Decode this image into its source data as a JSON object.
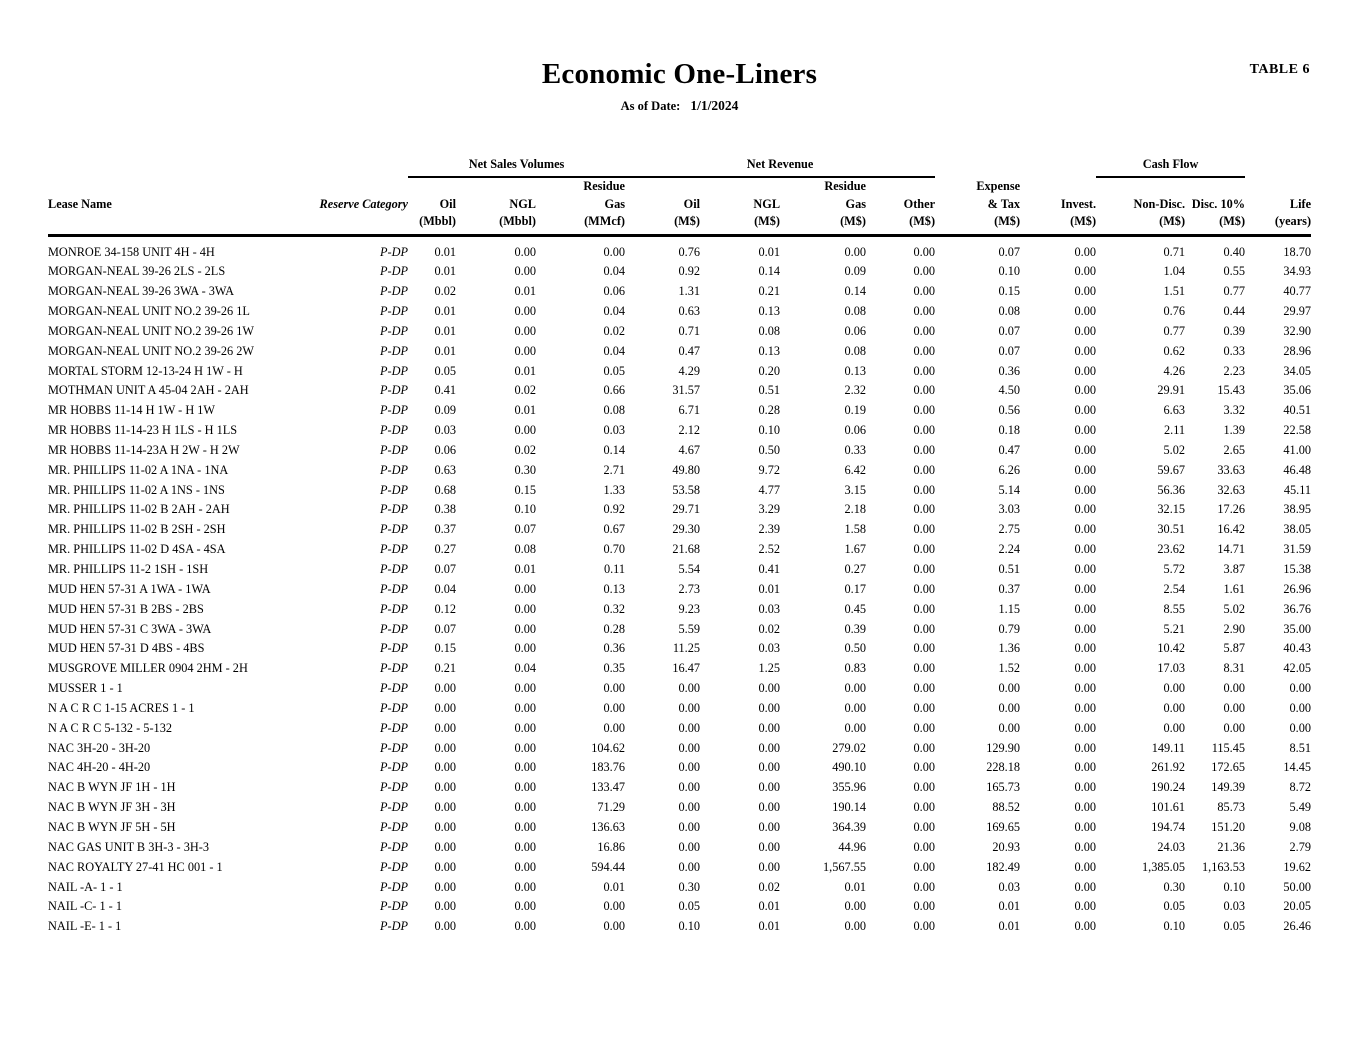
{
  "page": {
    "table_label": "TABLE 6",
    "title": "Economic One-Liners",
    "as_of_label": "As of Date:",
    "as_of_value": "1/1/2024"
  },
  "table": {
    "groups": {
      "net_sales": "Net Sales Volumes",
      "net_revenue": "Net Revenue",
      "cash_flow": "Cash Flow"
    },
    "headers": {
      "lease_name": "Lease Name",
      "reserve_category": "Reserve Category",
      "oil_vol": [
        "Oil",
        "(Mbbl)"
      ],
      "ngl_vol": [
        "NGL",
        "(Mbbl)"
      ],
      "residue_gas_vol": [
        "Residue",
        "Gas",
        "(MMcf)"
      ],
      "oil_rev": [
        "Oil",
        "(M$)"
      ],
      "ngl_rev": [
        "NGL",
        "(M$)"
      ],
      "residue_gas_rev": [
        "Residue",
        "Gas",
        "(M$)"
      ],
      "other_rev": [
        "Other",
        "(M$)"
      ],
      "expense_tax": [
        "Expense",
        "& Tax",
        "(M$)"
      ],
      "invest": [
        "Invest.",
        "(M$)"
      ],
      "non_disc": [
        "Non-Disc.",
        "(M$)"
      ],
      "disc_10": [
        "Disc. 10%",
        "(M$)"
      ],
      "life": [
        "Life",
        "(years)"
      ]
    },
    "rows": [
      {
        "lease": "MONROE 34-158 UNIT 4H - 4H",
        "category": "P-DP",
        "values": [
          "0.01",
          "0.00",
          "0.00",
          "0.76",
          "0.01",
          "0.00",
          "0.00",
          "0.07",
          "0.00",
          "0.71",
          "0.40",
          "18.70"
        ]
      },
      {
        "lease": "MORGAN-NEAL 39-26 2LS - 2LS",
        "category": "P-DP",
        "values": [
          "0.01",
          "0.00",
          "0.04",
          "0.92",
          "0.14",
          "0.09",
          "0.00",
          "0.10",
          "0.00",
          "1.04",
          "0.55",
          "34.93"
        ]
      },
      {
        "lease": "MORGAN-NEAL 39-26 3WA - 3WA",
        "category": "P-DP",
        "values": [
          "0.02",
          "0.01",
          "0.06",
          "1.31",
          "0.21",
          "0.14",
          "0.00",
          "0.15",
          "0.00",
          "1.51",
          "0.77",
          "40.77"
        ]
      },
      {
        "lease": "MORGAN-NEAL UNIT NO.2 39-26 1L",
        "category": "P-DP",
        "values": [
          "0.01",
          "0.00",
          "0.04",
          "0.63",
          "0.13",
          "0.08",
          "0.00",
          "0.08",
          "0.00",
          "0.76",
          "0.44",
          "29.97"
        ]
      },
      {
        "lease": "MORGAN-NEAL UNIT NO.2 39-26 1W",
        "category": "P-DP",
        "values": [
          "0.01",
          "0.00",
          "0.02",
          "0.71",
          "0.08",
          "0.06",
          "0.00",
          "0.07",
          "0.00",
          "0.77",
          "0.39",
          "32.90"
        ]
      },
      {
        "lease": "MORGAN-NEAL UNIT NO.2 39-26 2W",
        "category": "P-DP",
        "values": [
          "0.01",
          "0.00",
          "0.04",
          "0.47",
          "0.13",
          "0.08",
          "0.00",
          "0.07",
          "0.00",
          "0.62",
          "0.33",
          "28.96"
        ]
      },
      {
        "lease": "MORTAL STORM 12-13-24 H 1W - H",
        "category": "P-DP",
        "values": [
          "0.05",
          "0.01",
          "0.05",
          "4.29",
          "0.20",
          "0.13",
          "0.00",
          "0.36",
          "0.00",
          "4.26",
          "2.23",
          "34.05"
        ]
      },
      {
        "lease": "MOTHMAN UNIT A 45-04 2AH - 2AH",
        "category": "P-DP",
        "values": [
          "0.41",
          "0.02",
          "0.66",
          "31.57",
          "0.51",
          "2.32",
          "0.00",
          "4.50",
          "0.00",
          "29.91",
          "15.43",
          "35.06"
        ]
      },
      {
        "lease": "MR HOBBS 11-14 H 1W - H 1W",
        "category": "P-DP",
        "values": [
          "0.09",
          "0.01",
          "0.08",
          "6.71",
          "0.28",
          "0.19",
          "0.00",
          "0.56",
          "0.00",
          "6.63",
          "3.32",
          "40.51"
        ]
      },
      {
        "lease": "MR HOBBS 11-14-23 H 1LS - H 1LS",
        "category": "P-DP",
        "values": [
          "0.03",
          "0.00",
          "0.03",
          "2.12",
          "0.10",
          "0.06",
          "0.00",
          "0.18",
          "0.00",
          "2.11",
          "1.39",
          "22.58"
        ]
      },
      {
        "lease": "MR HOBBS 11-14-23A H 2W - H 2W",
        "category": "P-DP",
        "values": [
          "0.06",
          "0.02",
          "0.14",
          "4.67",
          "0.50",
          "0.33",
          "0.00",
          "0.47",
          "0.00",
          "5.02",
          "2.65",
          "41.00"
        ]
      },
      {
        "lease": "MR. PHILLIPS 11-02 A 1NA - 1NA",
        "category": "P-DP",
        "values": [
          "0.63",
          "0.30",
          "2.71",
          "49.80",
          "9.72",
          "6.42",
          "0.00",
          "6.26",
          "0.00",
          "59.67",
          "33.63",
          "46.48"
        ]
      },
      {
        "lease": "MR. PHILLIPS 11-02 A 1NS - 1NS",
        "category": "P-DP",
        "values": [
          "0.68",
          "0.15",
          "1.33",
          "53.58",
          "4.77",
          "3.15",
          "0.00",
          "5.14",
          "0.00",
          "56.36",
          "32.63",
          "45.11"
        ]
      },
      {
        "lease": "MR. PHILLIPS 11-02 B 2AH - 2AH",
        "category": "P-DP",
        "values": [
          "0.38",
          "0.10",
          "0.92",
          "29.71",
          "3.29",
          "2.18",
          "0.00",
          "3.03",
          "0.00",
          "32.15",
          "17.26",
          "38.95"
        ]
      },
      {
        "lease": "MR. PHILLIPS 11-02 B 2SH - 2SH",
        "category": "P-DP",
        "values": [
          "0.37",
          "0.07",
          "0.67",
          "29.30",
          "2.39",
          "1.58",
          "0.00",
          "2.75",
          "0.00",
          "30.51",
          "16.42",
          "38.05"
        ]
      },
      {
        "lease": "MR. PHILLIPS 11-02 D 4SA - 4SA",
        "category": "P-DP",
        "values": [
          "0.27",
          "0.08",
          "0.70",
          "21.68",
          "2.52",
          "1.67",
          "0.00",
          "2.24",
          "0.00",
          "23.62",
          "14.71",
          "31.59"
        ]
      },
      {
        "lease": "MR. PHILLIPS 11-2 1SH - 1SH",
        "category": "P-DP",
        "values": [
          "0.07",
          "0.01",
          "0.11",
          "5.54",
          "0.41",
          "0.27",
          "0.00",
          "0.51",
          "0.00",
          "5.72",
          "3.87",
          "15.38"
        ]
      },
      {
        "lease": "MUD HEN 57-31 A 1WA - 1WA",
        "category": "P-DP",
        "values": [
          "0.04",
          "0.00",
          "0.13",
          "2.73",
          "0.01",
          "0.17",
          "0.00",
          "0.37",
          "0.00",
          "2.54",
          "1.61",
          "26.96"
        ]
      },
      {
        "lease": "MUD HEN 57-31 B 2BS - 2BS",
        "category": "P-DP",
        "values": [
          "0.12",
          "0.00",
          "0.32",
          "9.23",
          "0.03",
          "0.45",
          "0.00",
          "1.15",
          "0.00",
          "8.55",
          "5.02",
          "36.76"
        ]
      },
      {
        "lease": "MUD HEN 57-31 C 3WA - 3WA",
        "category": "P-DP",
        "values": [
          "0.07",
          "0.00",
          "0.28",
          "5.59",
          "0.02",
          "0.39",
          "0.00",
          "0.79",
          "0.00",
          "5.21",
          "2.90",
          "35.00"
        ]
      },
      {
        "lease": "MUD HEN 57-31 D 4BS - 4BS",
        "category": "P-DP",
        "values": [
          "0.15",
          "0.00",
          "0.36",
          "11.25",
          "0.03",
          "0.50",
          "0.00",
          "1.36",
          "0.00",
          "10.42",
          "5.87",
          "40.43"
        ]
      },
      {
        "lease": "MUSGROVE MILLER 0904 2HM - 2H",
        "category": "P-DP",
        "values": [
          "0.21",
          "0.04",
          "0.35",
          "16.47",
          "1.25",
          "0.83",
          "0.00",
          "1.52",
          "0.00",
          "17.03",
          "8.31",
          "42.05"
        ]
      },
      {
        "lease": "MUSSER 1 - 1",
        "category": "P-DP",
        "values": [
          "0.00",
          "0.00",
          "0.00",
          "0.00",
          "0.00",
          "0.00",
          "0.00",
          "0.00",
          "0.00",
          "0.00",
          "0.00",
          "0.00"
        ]
      },
      {
        "lease": "N A C R C 1-15 ACRES 1 - 1",
        "category": "P-DP",
        "values": [
          "0.00",
          "0.00",
          "0.00",
          "0.00",
          "0.00",
          "0.00",
          "0.00",
          "0.00",
          "0.00",
          "0.00",
          "0.00",
          "0.00"
        ]
      },
      {
        "lease": "N A C R C 5-132 - 5-132",
        "category": "P-DP",
        "values": [
          "0.00",
          "0.00",
          "0.00",
          "0.00",
          "0.00",
          "0.00",
          "0.00",
          "0.00",
          "0.00",
          "0.00",
          "0.00",
          "0.00"
        ]
      },
      {
        "lease": "NAC 3H-20 - 3H-20",
        "category": "P-DP",
        "values": [
          "0.00",
          "0.00",
          "104.62",
          "0.00",
          "0.00",
          "279.02",
          "0.00",
          "129.90",
          "0.00",
          "149.11",
          "115.45",
          "8.51"
        ]
      },
      {
        "lease": "NAC 4H-20 - 4H-20",
        "category": "P-DP",
        "values": [
          "0.00",
          "0.00",
          "183.76",
          "0.00",
          "0.00",
          "490.10",
          "0.00",
          "228.18",
          "0.00",
          "261.92",
          "172.65",
          "14.45"
        ]
      },
      {
        "lease": "NAC B WYN JF 1H - 1H",
        "category": "P-DP",
        "values": [
          "0.00",
          "0.00",
          "133.47",
          "0.00",
          "0.00",
          "355.96",
          "0.00",
          "165.73",
          "0.00",
          "190.24",
          "149.39",
          "8.72"
        ]
      },
      {
        "lease": "NAC B WYN JF 3H - 3H",
        "category": "P-DP",
        "values": [
          "0.00",
          "0.00",
          "71.29",
          "0.00",
          "0.00",
          "190.14",
          "0.00",
          "88.52",
          "0.00",
          "101.61",
          "85.73",
          "5.49"
        ]
      },
      {
        "lease": "NAC B WYN JF 5H - 5H",
        "category": "P-DP",
        "values": [
          "0.00",
          "0.00",
          "136.63",
          "0.00",
          "0.00",
          "364.39",
          "0.00",
          "169.65",
          "0.00",
          "194.74",
          "151.20",
          "9.08"
        ]
      },
      {
        "lease": "NAC GAS UNIT B 3H-3 - 3H-3",
        "category": "P-DP",
        "values": [
          "0.00",
          "0.00",
          "16.86",
          "0.00",
          "0.00",
          "44.96",
          "0.00",
          "20.93",
          "0.00",
          "24.03",
          "21.36",
          "2.79"
        ]
      },
      {
        "lease": "NAC ROYALTY 27-41 HC 001 - 1",
        "category": "P-DP",
        "values": [
          "0.00",
          "0.00",
          "594.44",
          "0.00",
          "0.00",
          "1,567.55",
          "0.00",
          "182.49",
          "0.00",
          "1,385.05",
          "1,163.53",
          "19.62"
        ]
      },
      {
        "lease": "NAIL -A- 1 - 1",
        "category": "P-DP",
        "values": [
          "0.00",
          "0.00",
          "0.01",
          "0.30",
          "0.02",
          "0.01",
          "0.00",
          "0.03",
          "0.00",
          "0.30",
          "0.10",
          "50.00"
        ]
      },
      {
        "lease": "NAIL -C- 1 - 1",
        "category": "P-DP",
        "values": [
          "0.00",
          "0.00",
          "0.00",
          "0.05",
          "0.01",
          "0.00",
          "0.00",
          "0.01",
          "0.00",
          "0.05",
          "0.03",
          "20.05"
        ]
      },
      {
        "lease": "NAIL -E- 1 - 1",
        "category": "P-DP",
        "values": [
          "0.00",
          "0.00",
          "0.00",
          "0.10",
          "0.01",
          "0.00",
          "0.00",
          "0.01",
          "0.00",
          "0.10",
          "0.05",
          "26.46"
        ]
      }
    ]
  }
}
